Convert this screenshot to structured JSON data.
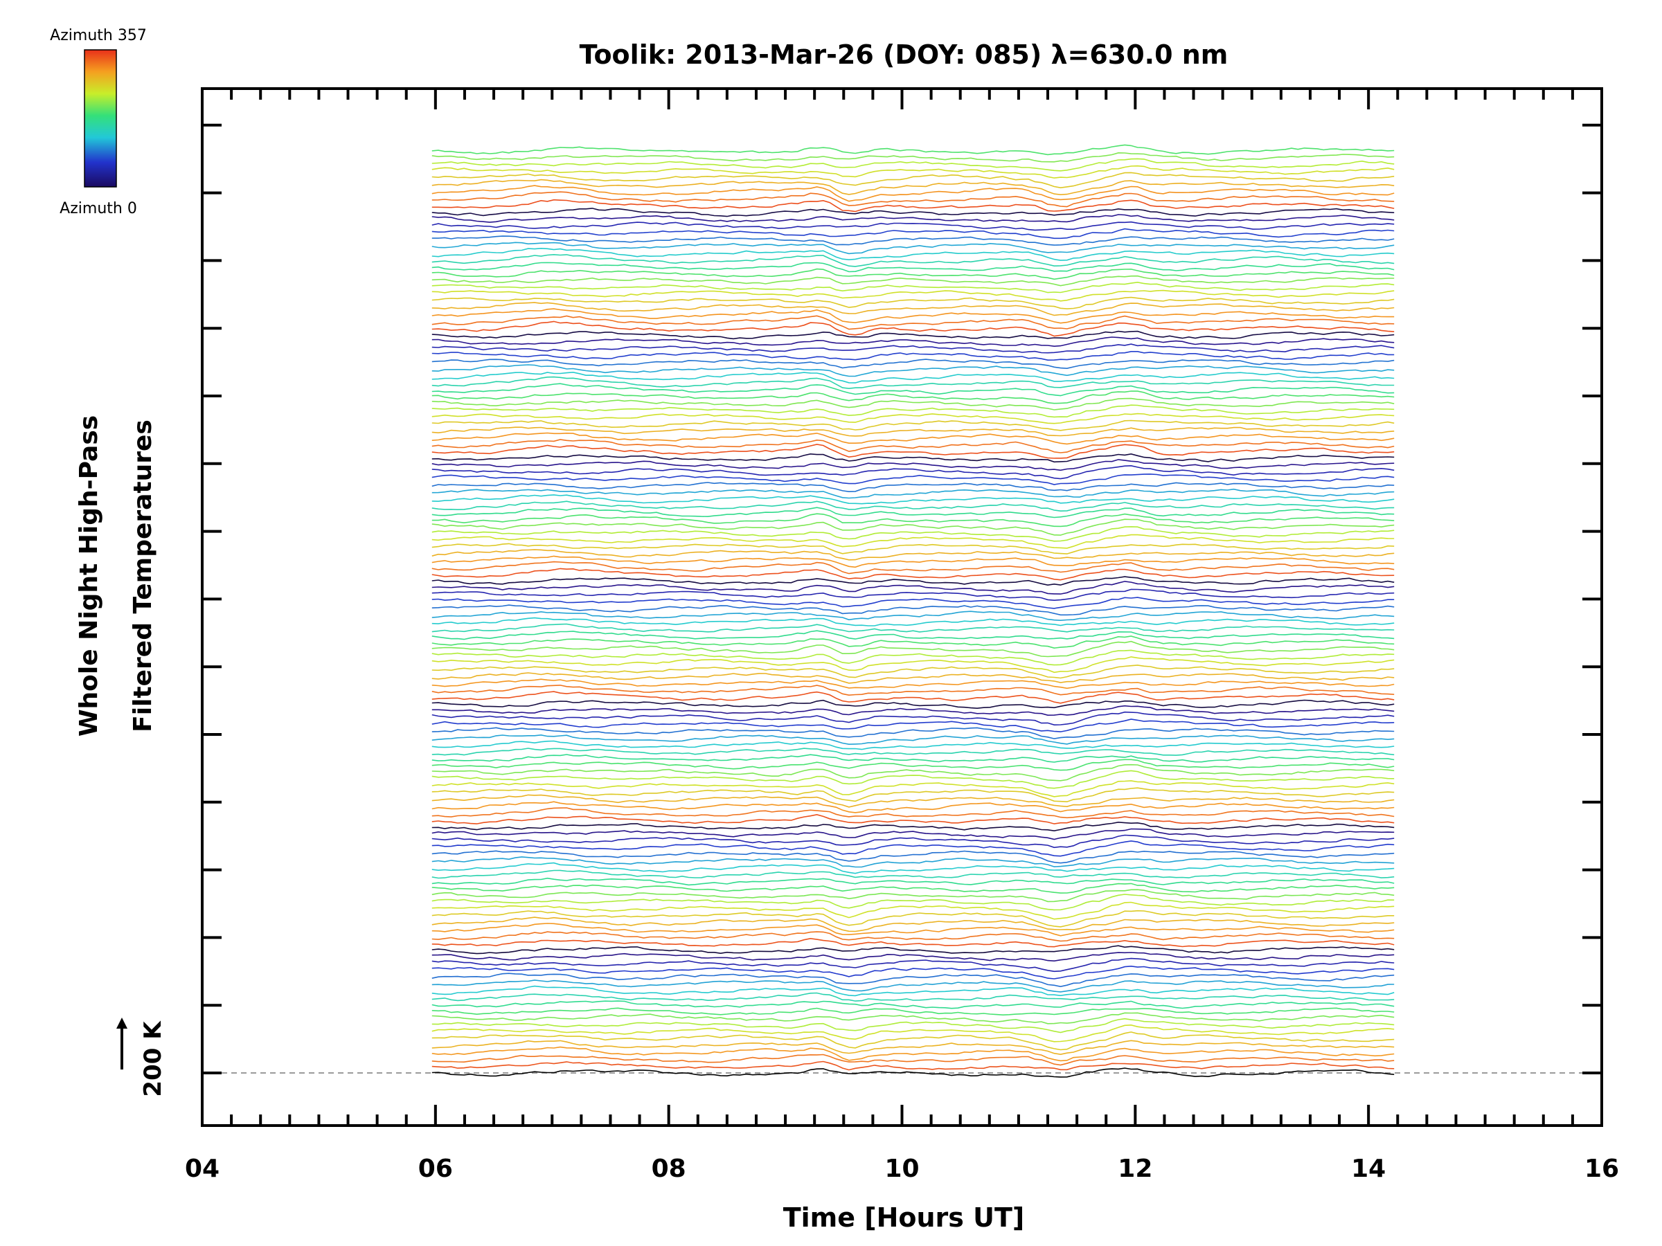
{
  "chart_data": {
    "type": "line",
    "title": "Toolik: 2013-Mar-26 (DOY: 085) λ=630.0 nm",
    "xlabel": "Time [Hours UT]",
    "ylabel_line1": "Whole Night High-Pass",
    "ylabel_line2": "Filtered Temperatures",
    "xlim": [
      4,
      16
    ],
    "x_ticks": [
      "04",
      "06",
      "08",
      "10",
      "12",
      "14",
      "16"
    ],
    "x_tick_values": [
      4,
      6,
      8,
      10,
      12,
      14,
      16
    ],
    "data_time_range": [
      5.97,
      14.22
    ],
    "scale_bar_label": "200 K",
    "baseline_style": "dashed grey line at lowest trace",
    "colorbar": {
      "top_label": "Azimuth 357",
      "bottom_label": "Azimuth 0",
      "colormap": "rainbow (violet → blue → cyan → green → yellow → orange → red)"
    },
    "series_count": 136,
    "series_description": "Stacked high-pass filtered temperature time series, one per sky zone, colored by azimuth, vertically offset",
    "grid": false,
    "legend": "colorbar top-left"
  }
}
